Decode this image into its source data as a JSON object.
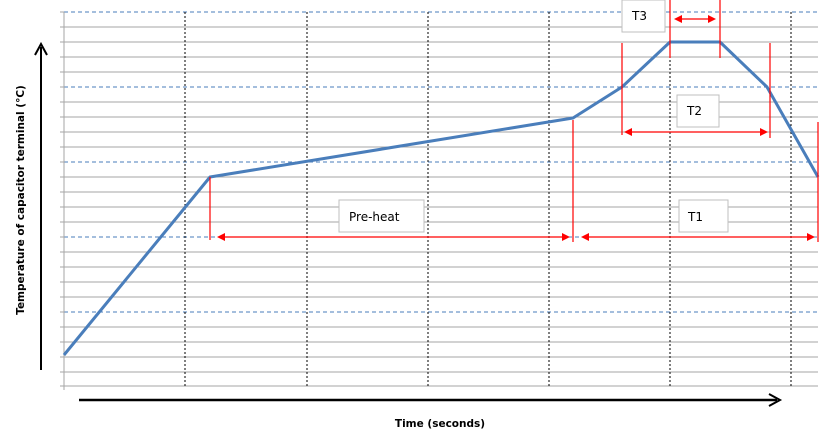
{
  "diagram": {
    "x_axis_label": "Time (seconds)",
    "y_axis_label": "Temperature of capacitor terminal (°C)",
    "labels": {
      "preheat": "Pre-heat",
      "t1": "T1",
      "t2": "T2",
      "t3": "T3"
    },
    "colors": {
      "curve": "#4a7ebb",
      "markers": "#ff0000",
      "grid": "#a6a6a6",
      "major_grid": "#4a7ebb",
      "vertical_grid": "#000000"
    }
  }
}
